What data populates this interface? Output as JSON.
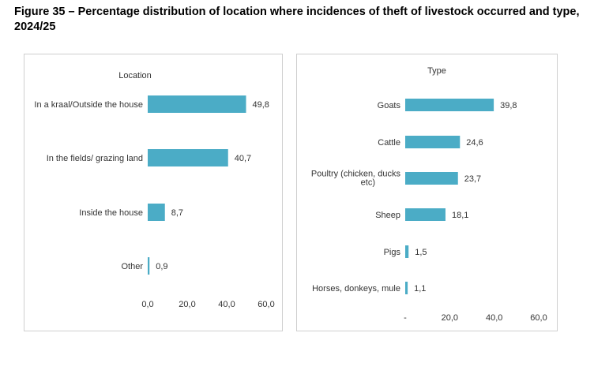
{
  "figure": {
    "title": "Figure 35 – Percentage distribution of location where incidences of theft of livestock occurred and type, 2024/25"
  },
  "colors": {
    "bar": "#4bacc6"
  },
  "chart_data": [
    {
      "type": "bar",
      "orientation": "horizontal",
      "title": "Location",
      "categories": [
        "In a kraal/Outside the house",
        "In the fields/ grazing land",
        "Inside the house",
        "Other"
      ],
      "values": [
        49.8,
        40.7,
        8.7,
        0.9
      ],
      "value_labels": [
        "49,8",
        "40,7",
        "8,7",
        "0,9"
      ],
      "xlim": [
        0,
        60
      ],
      "xticks": [
        "0,0",
        "20,0",
        "40,0",
        "60,0"
      ],
      "grid": false,
      "legend": "none"
    },
    {
      "type": "bar",
      "orientation": "horizontal",
      "title": "Type",
      "categories": [
        "Goats",
        "Cattle",
        "Poultry (chicken, ducks etc)",
        "Sheep",
        "Pigs",
        "Horses, donkeys, mule"
      ],
      "values": [
        39.8,
        24.6,
        23.7,
        18.1,
        1.5,
        1.1
      ],
      "value_labels": [
        "39,8",
        "24,6",
        "23,7",
        "18,1",
        "1,5",
        "1,1"
      ],
      "xlim": [
        0,
        60
      ],
      "xticks": [
        "-",
        "20,0",
        "40,0",
        "60,0"
      ],
      "grid": false,
      "legend": "none"
    }
  ]
}
